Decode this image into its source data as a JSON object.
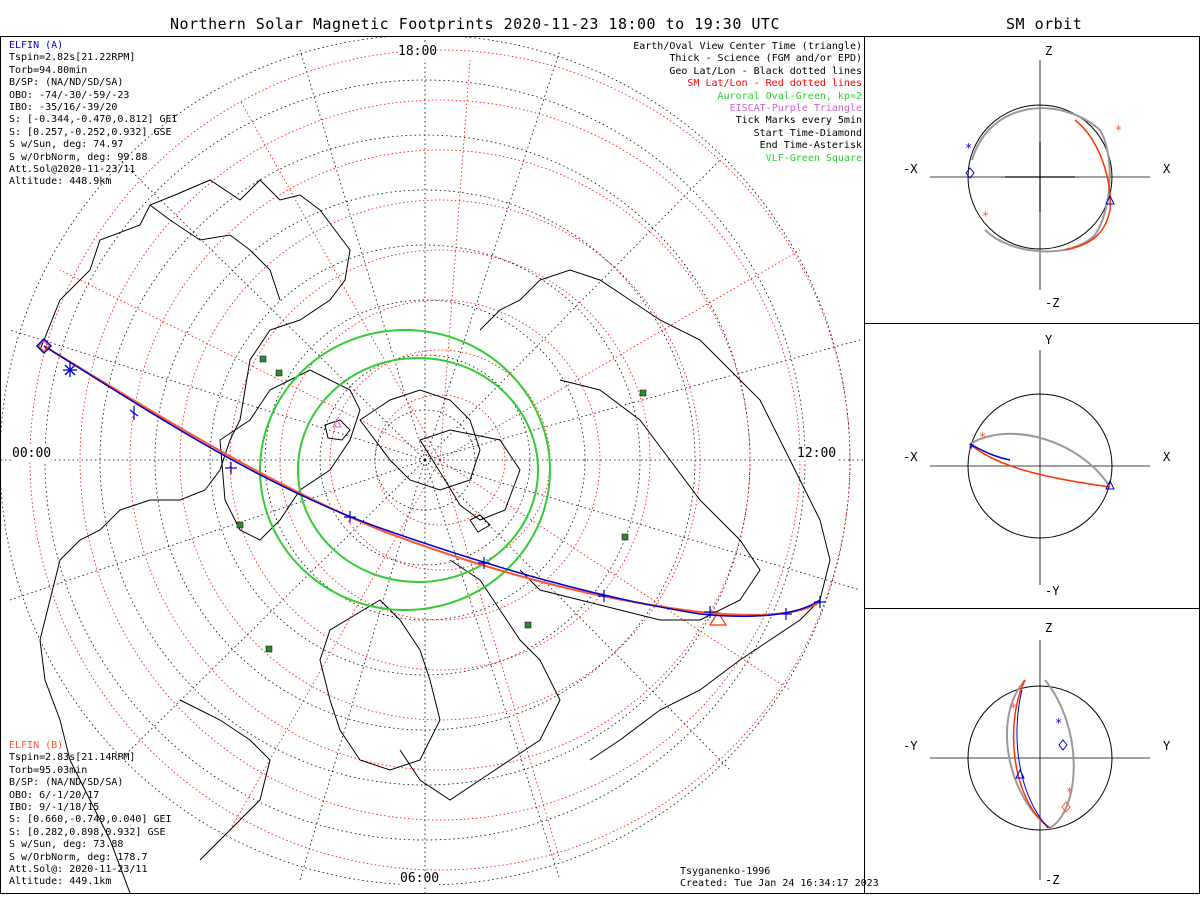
{
  "main_title": "Northern Solar Magnetic Footprints 2020-11-23 18:00 to 19:30 UTC",
  "side_title": "SM orbit",
  "map": {
    "time_labels": {
      "top": "18:00",
      "left": "00:00",
      "right": "12:00",
      "bottom": "06:00"
    },
    "footer_model": "Tsyganenko-1996",
    "footer_created": "Created: Tue Jan 24 16:34:17 2023"
  },
  "elfin_a": {
    "name": "ELFIN (A)",
    "color": "#0000cc",
    "lines": [
      "Tspin=2.82s[21.22RPM]",
      "Torb=94.80min",
      "B/SP: (NA/ND/SD/SA)",
      "OBO: -74/-30/-59/-23",
      "IBO: -35/16/-39/20",
      "S: [-0.344,-0.470,0.812] GEI",
      "S: [0.257,-0.252,0.932] GSE",
      "S w/Sun, deg: 74.97",
      "S w/OrbNorm, deg: 99.88",
      "Att.Sol@2020-11-23/11",
      "Altitude: 448.9km"
    ]
  },
  "elfin_b": {
    "name": "ELFIN (B)",
    "color": "#ff5533",
    "lines": [
      "Tspin=2.83s[21.14RPM]",
      "Torb=95.03min",
      "B/SP: (NA/ND/SD/SA)",
      "OBO: 6/-1/20/17",
      "IBO: 9/-1/18/15",
      "S: [0.660,-0.749,0.040] GEI",
      "S: [0.282,0.898,0.932] GSE",
      "S w/Sun, deg: 73.88",
      "S w/OrbNorm, deg: 178.7",
      "Att.Sol@: 2020-11-23/11",
      "Altitude: 449.1km"
    ]
  },
  "legend": [
    {
      "text": "Earth/Oval View Center Time (triangle)",
      "color": "#000000"
    },
    {
      "text": "Thick - Science (FGM and/or EPD)",
      "color": "#000000"
    },
    {
      "text": "Geo Lat/Lon - Black dotted lines",
      "color": "#000000"
    },
    {
      "text": "SM Lat/Lon - Red dotted lines",
      "color": "#ff0000"
    },
    {
      "text": "Auroral Oval-Green, kp=2",
      "color": "#33cc33"
    },
    {
      "text": "EISCAT-Purple Triangle",
      "color": "#cc66cc"
    },
    {
      "text": "Tick Marks every 5min",
      "color": "#000000"
    },
    {
      "text": "Start Time-Diamond",
      "color": "#000000"
    },
    {
      "text": "End Time-Asterisk",
      "color": "#000000"
    },
    {
      "text": "VLF-Green Square",
      "color": "#33cc33"
    }
  ],
  "orbit_panels": [
    {
      "top": "Z",
      "bottom": "-Z",
      "left": "-X",
      "right": "X"
    },
    {
      "top": "Y",
      "bottom": "-Y",
      "left": "-X",
      "right": "X"
    },
    {
      "top": "Z",
      "bottom": "-Z",
      "left": "-Y",
      "right": "Y"
    }
  ],
  "colors": {
    "elfin_a": "#0000cc",
    "elfin_b": "#ff5533",
    "auroral_oval": "#33cc33",
    "sm_grid": "#ff0000",
    "geo_grid": "#000000",
    "vlf": "#338833",
    "orbit_gray": "#999999"
  }
}
